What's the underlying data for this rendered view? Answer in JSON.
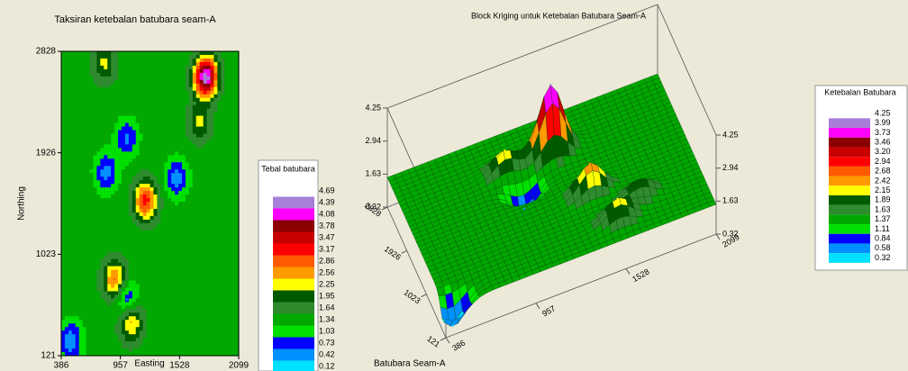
{
  "chart_data": [
    {
      "type": "contour",
      "title": "Taksiran ketebalan batubara seam-A",
      "xlabel": "Easting",
      "ylabel": "Northing",
      "xlim": [
        386,
        2099
      ],
      "ylim": [
        121,
        2828
      ],
      "xticks": [
        386,
        957,
        1528,
        2099
      ],
      "yticks": [
        121,
        1023,
        1926,
        2828
      ],
      "background_value": 1.5,
      "peaks": [
        {
          "easting": 1780,
          "northing": 2600,
          "value": 4.6
        },
        {
          "easting": 1200,
          "northing": 1500,
          "value": 3.3
        },
        {
          "easting": 900,
          "northing": 800,
          "value": 2.9
        },
        {
          "easting": 1060,
          "northing": 420,
          "value": 2.7
        },
        {
          "easting": 1720,
          "northing": 2200,
          "value": 2.3
        },
        {
          "easting": 800,
          "northing": 2720,
          "value": 2.3
        },
        {
          "easting": 820,
          "northing": 1750,
          "value": 0.6
        },
        {
          "easting": 1020,
          "northing": 2050,
          "value": 0.7
        },
        {
          "easting": 1500,
          "northing": 1700,
          "value": 0.6
        },
        {
          "easting": 480,
          "northing": 250,
          "value": 0.5
        },
        {
          "easting": 1020,
          "northing": 620,
          "value": 0.6
        }
      ],
      "legend": {
        "title": "Tebal batubara",
        "levels": [
          4.69,
          4.39,
          4.08,
          3.78,
          3.47,
          3.17,
          2.86,
          2.56,
          2.25,
          1.95,
          1.64,
          1.34,
          1.03,
          0.73,
          0.42,
          0.12
        ],
        "colors": [
          "#ffffff",
          "#a77fd9",
          "#ff00ff",
          "#8b0000",
          "#c80000",
          "#ff0000",
          "#ff5a00",
          "#ff9a00",
          "#ffff00",
          "#005a00",
          "#2e8b2e",
          "#00a800",
          "#00e000",
          "#0000ff",
          "#0090ff",
          "#00e0ff"
        ]
      }
    },
    {
      "type": "surface3d",
      "title": "Block Kriging untuk Ketebalan Batubara Seam-A",
      "footer": "Batubara Seam-A",
      "xlim": [
        386,
        2099
      ],
      "ylim": [
        121,
        2828
      ],
      "zlim": [
        0.32,
        4.25
      ],
      "xticks": [
        386,
        957,
        1528,
        2099
      ],
      "yticks": [
        121,
        1023,
        1926,
        2828
      ],
      "zticks": [
        0.32,
        1.63,
        2.94,
        4.25
      ],
      "background_value": 1.5,
      "peaks": [
        {
          "easting": 1328,
          "northing": 2151,
          "value": 4.2
        },
        {
          "easting": 1448,
          "northing": 1204,
          "value": 2.6
        },
        {
          "easting": 1530,
          "northing": 527,
          "value": 2.3
        },
        {
          "easting": 1705,
          "northing": 798,
          "value": 2.1
        },
        {
          "easting": 1037,
          "northing": 2151,
          "value": 2.3
        },
        {
          "easting": 450,
          "northing": 250,
          "value": 0.4
        },
        {
          "easting": 1100,
          "northing": 1700,
          "value": 0.7
        }
      ],
      "legend": {
        "title": "Ketebalan Batubara",
        "levels": [
          4.25,
          3.99,
          3.73,
          3.46,
          {
            "value": 3.2,
            "label": "3.20"
          },
          2.94,
          2.68,
          2.42,
          2.15,
          1.89,
          1.63,
          1.37,
          1.11,
          0.84,
          0.58,
          0.32
        ],
        "colors": [
          "#ffffff",
          "#a77fd9",
          "#ff00ff",
          "#8b0000",
          "#c80000",
          "#ff0000",
          "#ff5a00",
          "#ff9a00",
          "#ffff00",
          "#005a00",
          "#2e8b2e",
          "#00a800",
          "#00e000",
          "#0000ff",
          "#0090ff",
          "#00e0ff"
        ]
      }
    }
  ]
}
